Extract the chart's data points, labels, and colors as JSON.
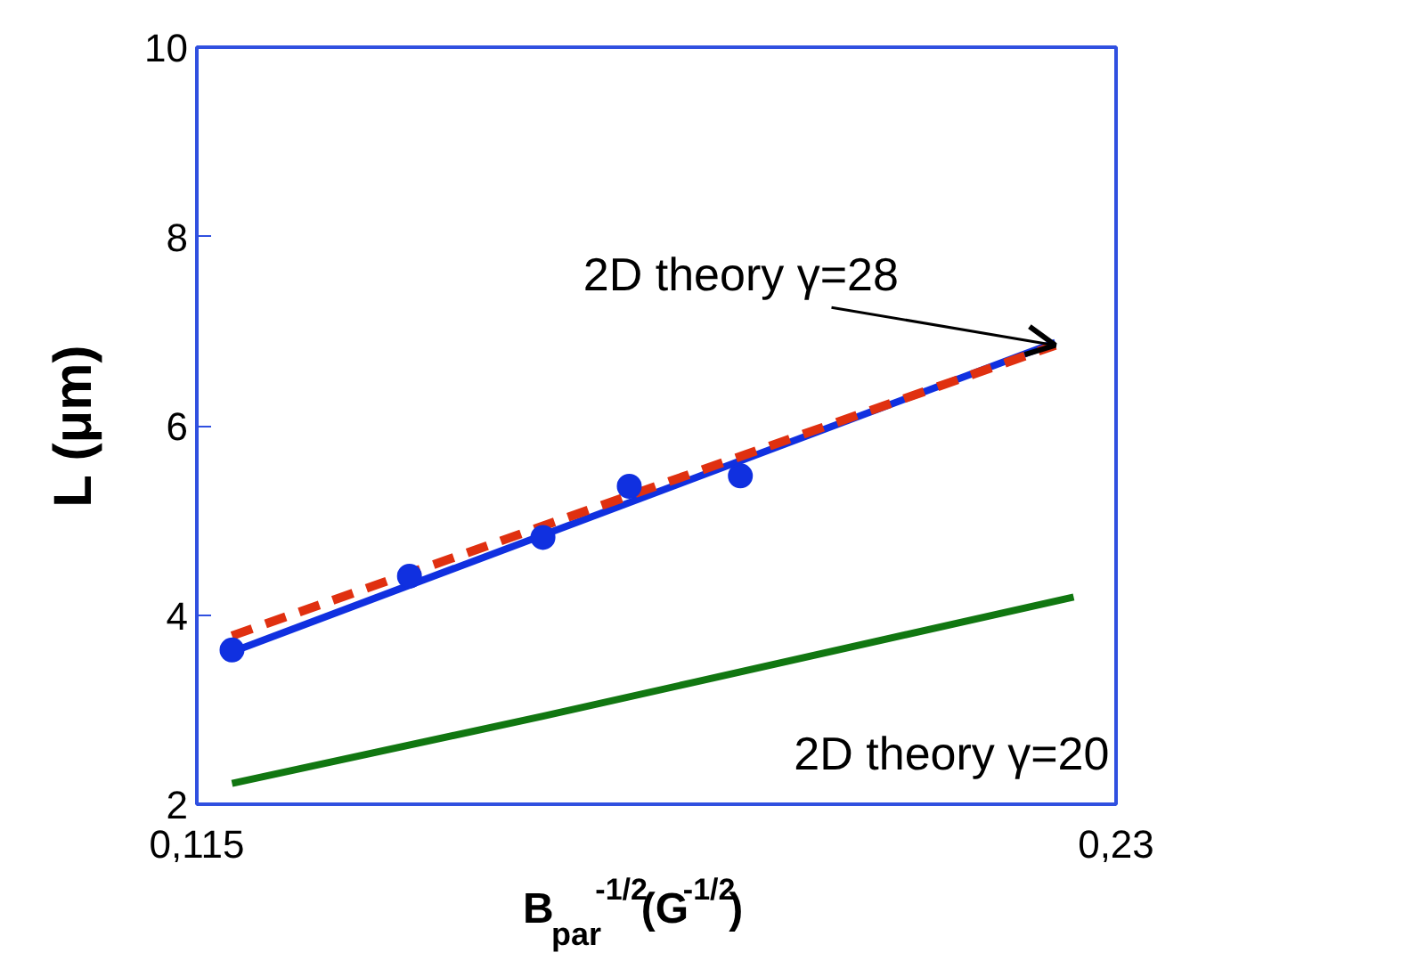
{
  "chart_data": {
    "type": "scatter",
    "xlabel": "B$_{par}$$^{-1/2}$(G$^{-1/2}$)",
    "ylabel": "L (μm)",
    "xlim": [
      0.115,
      0.23
    ],
    "xticks": [
      {
        "value": 0.115,
        "label": "0,115"
      },
      {
        "value": 0.23,
        "label": "0,23"
      }
    ],
    "ylim": [
      2,
      10
    ],
    "yticks": [
      2,
      4,
      6,
      8,
      10
    ],
    "grid": false,
    "annotations": [
      {
        "text": "2D theory γ=28",
        "x": 0.2224,
        "y": 6.85
      }
    ],
    "series": [
      {
        "color": "#1030e0",
        "marker": "circle",
        "x": [
          0.1194,
          0.1416,
          0.1583,
          0.1691,
          0.183
        ],
        "values": [
          3.63,
          4.41,
          4.82,
          5.36,
          5.47
        ]
      },
      {
        "type": "line",
        "color": "#1030e0",
        "line_style": "solid",
        "x": [
          0.1194,
          0.2224
        ],
        "values": [
          3.61,
          6.88
        ]
      },
      {
        "type": "line",
        "color": "#e03010",
        "line_style": "dashed",
        "x": [
          0.1194,
          0.2224
        ],
        "values": [
          3.78,
          6.85
        ]
      },
      {
        "type": "line",
        "name": "2D theory γ=20",
        "color": "#117711",
        "line_style": "solid",
        "x": [
          0.1194,
          0.1583,
          0.2247
        ],
        "values": [
          2.22,
          2.93,
          4.19
        ]
      }
    ]
  }
}
